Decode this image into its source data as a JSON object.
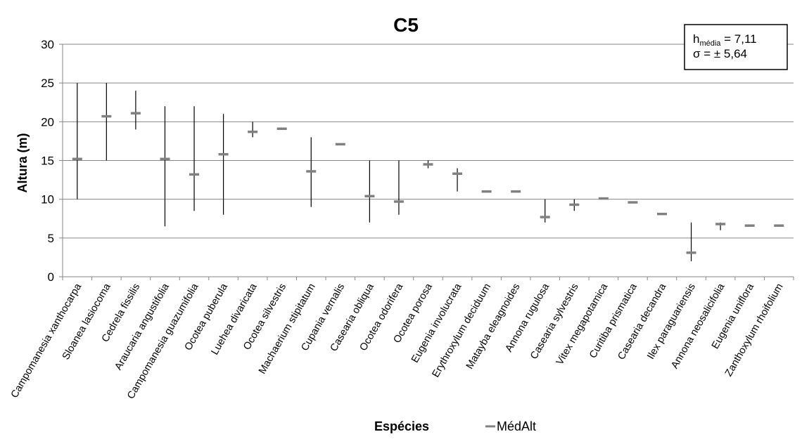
{
  "chart_data": {
    "type": "scatter",
    "title": "C5",
    "xlabel": "Espécies",
    "ylabel": "Altura (m)",
    "ylim": [
      0,
      30
    ],
    "yticks": [
      0,
      5,
      10,
      15,
      20,
      25,
      30
    ],
    "grid": true,
    "legend": {
      "position": "bottom",
      "entries": [
        "MédAlt"
      ]
    },
    "annotation": {
      "h_symbol": "h",
      "h_subscript": "média",
      "h_value": " = 7,11",
      "sigma_line": "σ = ± 5,64"
    },
    "series": [
      {
        "name": "MédAlt",
        "color": "#808080",
        "points": [
          {
            "category": "Campomanesia xanthocarpa",
            "mean": 15.2,
            "min": 10,
            "max": 25
          },
          {
            "category": "Sloanea lasiocoma",
            "mean": 20.7,
            "min": 15,
            "max": 25
          },
          {
            "category": "Cedrela fissilis",
            "mean": 21.1,
            "min": 19,
            "max": 24
          },
          {
            "category": "Araucaria angustifolia",
            "mean": 15.2,
            "min": 6.5,
            "max": 22
          },
          {
            "category": "Campomanesia guazumifolia",
            "mean": 13.2,
            "min": 8.5,
            "max": 22
          },
          {
            "category": "Ocotea puberula",
            "mean": 15.8,
            "min": 8,
            "max": 21
          },
          {
            "category": "Luehea divaricata",
            "mean": 18.7,
            "min": 18,
            "max": 20
          },
          {
            "category": "Ocotea silvestris",
            "mean": 19.1,
            "min": 19.1,
            "max": 19.1
          },
          {
            "category": "Machaerium stipitatum",
            "mean": 13.6,
            "min": 9,
            "max": 18
          },
          {
            "category": "Cupania vernalis",
            "mean": 17.1,
            "min": 17.1,
            "max": 17.1
          },
          {
            "category": "Casearia obliqua",
            "mean": 10.4,
            "min": 7,
            "max": 15
          },
          {
            "category": "Ocotea odorifera",
            "mean": 9.7,
            "min": 8,
            "max": 15
          },
          {
            "category": "Ocotea porosa",
            "mean": 14.5,
            "min": 14,
            "max": 15
          },
          {
            "category": "Eugenia involucrata",
            "mean": 13.3,
            "min": 11,
            "max": 14
          },
          {
            "category": "Erythroxylum deciduum",
            "mean": 11.0,
            "min": 11.0,
            "max": 11.0
          },
          {
            "category": "Matayba eleagnoides",
            "mean": 11.0,
            "min": 11.0,
            "max": 11.0
          },
          {
            "category": "Annona rugulosa",
            "mean": 7.7,
            "min": 7,
            "max": 10
          },
          {
            "category": "Casearia sylvestris",
            "mean": 9.3,
            "min": 8.5,
            "max": 10
          },
          {
            "category": "Vitex megapotamica",
            "mean": 10.1,
            "min": 10.1,
            "max": 10.1
          },
          {
            "category": "Curitiba prismatica",
            "mean": 9.6,
            "min": 9.6,
            "max": 9.6
          },
          {
            "category": "Casearia decandra",
            "mean": 8.1,
            "min": 8.1,
            "max": 8.1
          },
          {
            "category": "Ilex paraguariensis",
            "mean": 3.1,
            "min": 2,
            "max": 7
          },
          {
            "category": "Annona neosalicifolia",
            "mean": 6.8,
            "min": 6,
            "max": 7
          },
          {
            "category": "Eugenia uniflora",
            "mean": 6.6,
            "min": 6.6,
            "max": 6.6
          },
          {
            "category": "Zanthoxylum rhoifolium",
            "mean": 6.6,
            "min": 6.6,
            "max": 6.6
          }
        ]
      }
    ]
  }
}
